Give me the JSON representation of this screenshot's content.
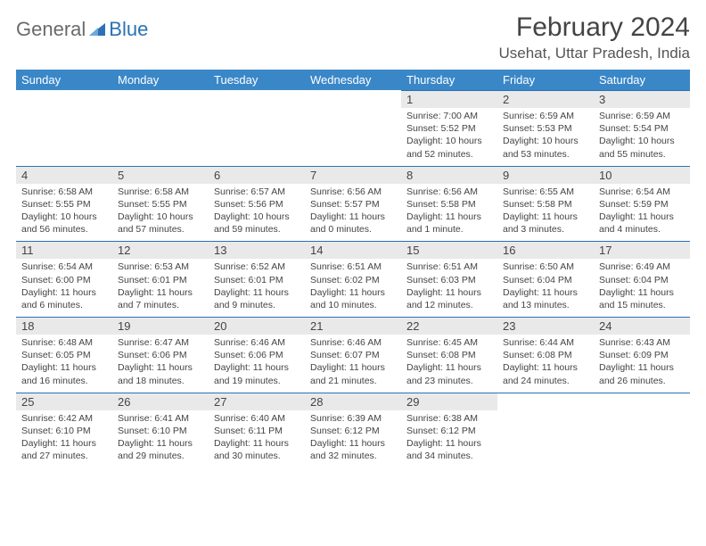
{
  "logo": {
    "part1": "General",
    "part2": "Blue"
  },
  "title": "February 2024",
  "location": "Usehat, Uttar Pradesh, India",
  "colors": {
    "header_bg": "#3a87c8",
    "header_text": "#ffffff",
    "daynum_bg": "#e9e9e9",
    "cell_border": "#2a72b5",
    "text": "#444444",
    "logo_gray": "#6a6a6a",
    "logo_blue": "#2a72b5"
  },
  "weekdays": [
    "Sunday",
    "Monday",
    "Tuesday",
    "Wednesday",
    "Thursday",
    "Friday",
    "Saturday"
  ],
  "weeks": [
    [
      null,
      null,
      null,
      null,
      {
        "n": "1",
        "sr": "7:00 AM",
        "ss": "5:52 PM",
        "dl": "10 hours and 52 minutes."
      },
      {
        "n": "2",
        "sr": "6:59 AM",
        "ss": "5:53 PM",
        "dl": "10 hours and 53 minutes."
      },
      {
        "n": "3",
        "sr": "6:59 AM",
        "ss": "5:54 PM",
        "dl": "10 hours and 55 minutes."
      }
    ],
    [
      {
        "n": "4",
        "sr": "6:58 AM",
        "ss": "5:55 PM",
        "dl": "10 hours and 56 minutes."
      },
      {
        "n": "5",
        "sr": "6:58 AM",
        "ss": "5:55 PM",
        "dl": "10 hours and 57 minutes."
      },
      {
        "n": "6",
        "sr": "6:57 AM",
        "ss": "5:56 PM",
        "dl": "10 hours and 59 minutes."
      },
      {
        "n": "7",
        "sr": "6:56 AM",
        "ss": "5:57 PM",
        "dl": "11 hours and 0 minutes."
      },
      {
        "n": "8",
        "sr": "6:56 AM",
        "ss": "5:58 PM",
        "dl": "11 hours and 1 minute."
      },
      {
        "n": "9",
        "sr": "6:55 AM",
        "ss": "5:58 PM",
        "dl": "11 hours and 3 minutes."
      },
      {
        "n": "10",
        "sr": "6:54 AM",
        "ss": "5:59 PM",
        "dl": "11 hours and 4 minutes."
      }
    ],
    [
      {
        "n": "11",
        "sr": "6:54 AM",
        "ss": "6:00 PM",
        "dl": "11 hours and 6 minutes."
      },
      {
        "n": "12",
        "sr": "6:53 AM",
        "ss": "6:01 PM",
        "dl": "11 hours and 7 minutes."
      },
      {
        "n": "13",
        "sr": "6:52 AM",
        "ss": "6:01 PM",
        "dl": "11 hours and 9 minutes."
      },
      {
        "n": "14",
        "sr": "6:51 AM",
        "ss": "6:02 PM",
        "dl": "11 hours and 10 minutes."
      },
      {
        "n": "15",
        "sr": "6:51 AM",
        "ss": "6:03 PM",
        "dl": "11 hours and 12 minutes."
      },
      {
        "n": "16",
        "sr": "6:50 AM",
        "ss": "6:04 PM",
        "dl": "11 hours and 13 minutes."
      },
      {
        "n": "17",
        "sr": "6:49 AM",
        "ss": "6:04 PM",
        "dl": "11 hours and 15 minutes."
      }
    ],
    [
      {
        "n": "18",
        "sr": "6:48 AM",
        "ss": "6:05 PM",
        "dl": "11 hours and 16 minutes."
      },
      {
        "n": "19",
        "sr": "6:47 AM",
        "ss": "6:06 PM",
        "dl": "11 hours and 18 minutes."
      },
      {
        "n": "20",
        "sr": "6:46 AM",
        "ss": "6:06 PM",
        "dl": "11 hours and 19 minutes."
      },
      {
        "n": "21",
        "sr": "6:46 AM",
        "ss": "6:07 PM",
        "dl": "11 hours and 21 minutes."
      },
      {
        "n": "22",
        "sr": "6:45 AM",
        "ss": "6:08 PM",
        "dl": "11 hours and 23 minutes."
      },
      {
        "n": "23",
        "sr": "6:44 AM",
        "ss": "6:08 PM",
        "dl": "11 hours and 24 minutes."
      },
      {
        "n": "24",
        "sr": "6:43 AM",
        "ss": "6:09 PM",
        "dl": "11 hours and 26 minutes."
      }
    ],
    [
      {
        "n": "25",
        "sr": "6:42 AM",
        "ss": "6:10 PM",
        "dl": "11 hours and 27 minutes."
      },
      {
        "n": "26",
        "sr": "6:41 AM",
        "ss": "6:10 PM",
        "dl": "11 hours and 29 minutes."
      },
      {
        "n": "27",
        "sr": "6:40 AM",
        "ss": "6:11 PM",
        "dl": "11 hours and 30 minutes."
      },
      {
        "n": "28",
        "sr": "6:39 AM",
        "ss": "6:12 PM",
        "dl": "11 hours and 32 minutes."
      },
      {
        "n": "29",
        "sr": "6:38 AM",
        "ss": "6:12 PM",
        "dl": "11 hours and 34 minutes."
      },
      null,
      null
    ]
  ],
  "labels": {
    "sunrise": "Sunrise:",
    "sunset": "Sunset:",
    "daylight": "Daylight:"
  }
}
